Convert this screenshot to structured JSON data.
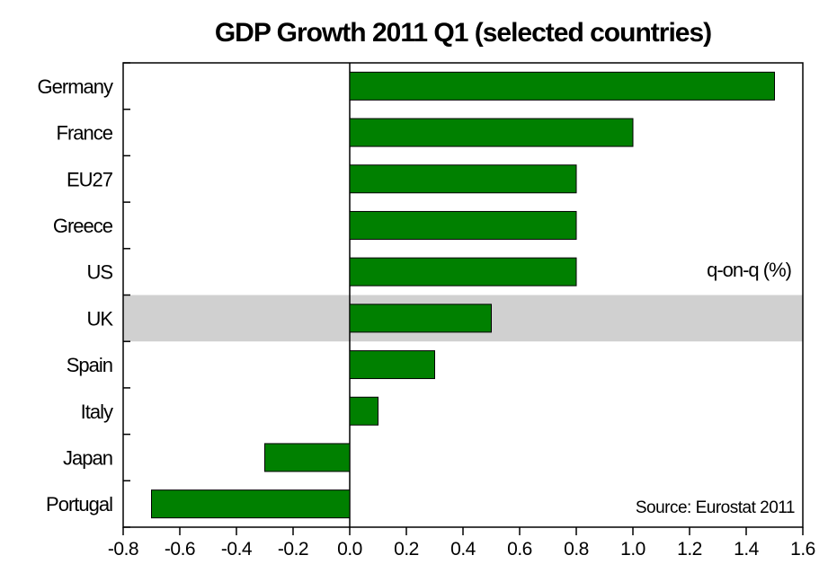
{
  "chart_data": {
    "type": "bar",
    "orientation": "horizontal",
    "title": "GDP Growth 2011 Q1 (selected countries)",
    "annotation_unit": "q-on-q (%)",
    "source": "Source: Eurostat 2011",
    "categories": [
      "Germany",
      "France",
      "EU27",
      "Greece",
      "US",
      "UK",
      "Spain",
      "Italy",
      "Japan",
      "Portugal"
    ],
    "values": [
      1.5,
      1.0,
      0.8,
      0.8,
      0.8,
      0.5,
      0.3,
      0.1,
      -0.3,
      -0.7
    ],
    "highlighted_category": "UK",
    "xlim": [
      -0.8,
      1.6
    ],
    "xticks": [
      "-0.8",
      "-0.6",
      "-0.4",
      "-0.2",
      "0.0",
      "0.2",
      "0.4",
      "0.6",
      "0.8",
      "1.0",
      "1.2",
      "1.4",
      "1.6"
    ],
    "xtick_values": [
      -0.8,
      -0.6,
      -0.4,
      -0.2,
      0.0,
      0.2,
      0.4,
      0.6,
      0.8,
      1.0,
      1.2,
      1.4,
      1.6
    ],
    "grid": false,
    "bar_color": "#008000",
    "highlight_color": "#d0d0d0"
  }
}
